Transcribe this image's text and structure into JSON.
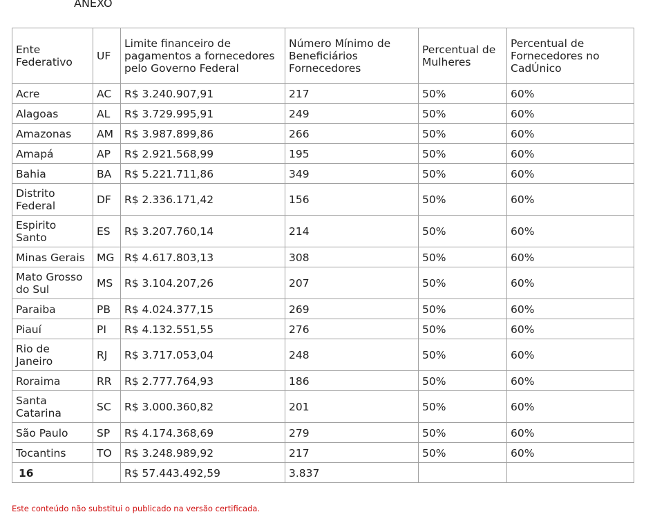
{
  "header": {
    "title": "ANEXO"
  },
  "table": {
    "columns": [
      "Ente Federativo",
      "UF",
      "Limite financeiro de pagamentos a fornecedores pelo Governo Federal",
      "Número Mínimo de Beneficiários Fornecedores",
      "Percentual de Mulheres",
      "Percentual de Fornecedores no CadÚnico"
    ],
    "rows": [
      [
        "Acre",
        "AC",
        "R$ 3.240.907,91",
        "217",
        "50%",
        "60%"
      ],
      [
        "Alagoas",
        "AL",
        "R$ 3.729.995,91",
        "249",
        "50%",
        "60%"
      ],
      [
        "Amazonas",
        "AM",
        "R$ 3.987.899,86",
        "266",
        "50%",
        "60%"
      ],
      [
        "Amapá",
        "AP",
        "R$ 2.921.568,99",
        "195",
        "50%",
        "60%"
      ],
      [
        "Bahia",
        "BA",
        "R$ 5.221.711,86",
        "349",
        "50%",
        "60%"
      ],
      [
        "Distrito Federal",
        "DF",
        "R$ 2.336.171,42",
        "156",
        "50%",
        "60%"
      ],
      [
        "Espirito Santo",
        "ES",
        "R$ 3.207.760,14",
        "214",
        "50%",
        "60%"
      ],
      [
        "Minas Gerais",
        "MG",
        "R$ 4.617.803,13",
        "308",
        "50%",
        "60%"
      ],
      [
        "Mato Grosso do Sul",
        "MS",
        "R$ 3.104.207,26",
        "207",
        "50%",
        "60%"
      ],
      [
        "Paraiba",
        "PB",
        "R$ 4.024.377,15",
        "269",
        "50%",
        "60%"
      ],
      [
        "Piauí",
        "PI",
        "R$ 4.132.551,55",
        "276",
        "50%",
        "60%"
      ],
      [
        "Rio de Janeiro",
        "RJ",
        "R$ 3.717.053,04",
        "248",
        "50%",
        "60%"
      ],
      [
        "Roraima",
        "RR",
        "R$ 2.777.764,93",
        "186",
        "50%",
        "60%"
      ],
      [
        "Santa Catarina",
        "SC",
        "R$ 3.000.360,82",
        "201",
        "50%",
        "60%"
      ],
      [
        "São Paulo",
        "SP",
        "R$ 4.174.368,69",
        "279",
        "50%",
        "60%"
      ],
      [
        "Tocantins",
        "TO",
        "R$ 3.248.989,92",
        "217",
        "50%",
        "60%"
      ]
    ],
    "total": {
      "count": "16",
      "limit": "R$ 57.443.492,59",
      "beneficiaries": "3.837"
    }
  },
  "footer": {
    "note": "Este conteúdo não substitui o publicado na versão certificada."
  }
}
